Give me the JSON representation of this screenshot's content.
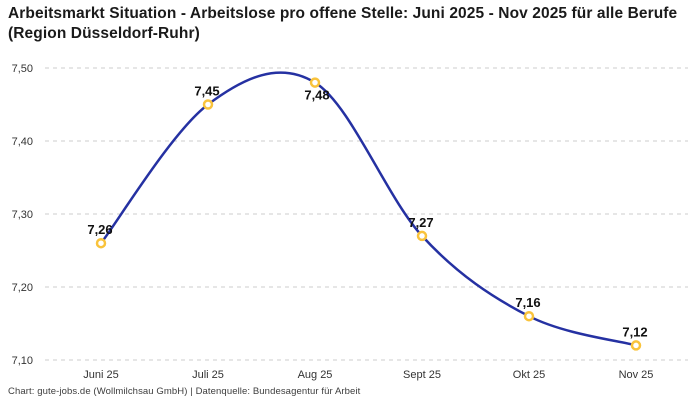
{
  "title": "Arbeitsmarkt Situation - Arbeitslose pro offene Stelle: Juni 2025 - Nov 2025 für alle Berufe (Region Düsseldorf-Ruhr)",
  "footer": "Chart: gute-jobs.de (Wollmilchsau GmbH) | Datenquelle: Bundesagentur für Arbeit",
  "chart_data": {
    "type": "line",
    "title": "Arbeitsmarkt Situation - Arbeitslose pro offene Stelle: Juni 2025 - Nov 2025 für alle Berufe (Region Düsseldorf-Ruhr)",
    "categories": [
      "Juni 25",
      "Juli 25",
      "Aug 25",
      "Sept 25",
      "Okt 25",
      "Nov 25"
    ],
    "values": [
      7.26,
      7.45,
      7.48,
      7.27,
      7.16,
      7.12
    ],
    "point_labels": [
      "7,26",
      "7,45",
      "7,48",
      "7,27",
      "7,16",
      "7,12"
    ],
    "point_label_positions": [
      "above",
      "above",
      "below",
      "above",
      "above",
      "above"
    ],
    "xlabel": "",
    "ylabel": "",
    "ylim": [
      7.1,
      7.5
    ],
    "yticks": [
      7.1,
      7.2,
      7.3,
      7.4,
      7.5
    ],
    "ytick_labels": [
      "7,10",
      "7,20",
      "7,30",
      "7,40",
      "7,50"
    ],
    "grid": "horizontal-dashed",
    "legend": "none",
    "smooth": true,
    "colors": {
      "line": "#2531a2",
      "marker_ring": "#f9c33c",
      "marker_fill": "#ffffff",
      "gridline": "#cccccc",
      "tick_text": "#333333",
      "point_label_text": "#111111",
      "background": "#ffffff"
    }
  }
}
